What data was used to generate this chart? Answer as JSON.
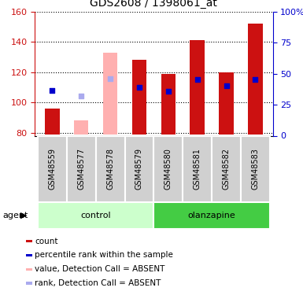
{
  "title": "GDS2608 / 1398061_at",
  "samples": [
    "GSM48559",
    "GSM48577",
    "GSM48578",
    "GSM48579",
    "GSM48580",
    "GSM48581",
    "GSM48582",
    "GSM48583"
  ],
  "groups": {
    "control": [
      0,
      1,
      2,
      3
    ],
    "olanzapine": [
      4,
      5,
      6,
      7
    ]
  },
  "ylim_left": [
    78,
    160
  ],
  "ylim_right": [
    0,
    100
  ],
  "yticks_left": [
    80,
    100,
    120,
    140,
    160
  ],
  "yticks_right": [
    0,
    25,
    50,
    75,
    100
  ],
  "ytick_labels_right": [
    "0",
    "25",
    "50",
    "75",
    "100%"
  ],
  "red_bars": {
    "values": [
      96,
      null,
      null,
      128,
      119,
      141,
      120,
      152
    ],
    "bottom": [
      79,
      null,
      null,
      79,
      79,
      79,
      79,
      79
    ]
  },
  "pink_bars": {
    "values": [
      null,
      88,
      133,
      null,
      null,
      null,
      null,
      null
    ],
    "bottom": [
      null,
      79,
      79,
      null,
      null,
      null,
      null,
      null
    ]
  },
  "blue_squares": {
    "x": [
      0,
      3,
      4,
      5,
      6,
      7
    ],
    "y": [
      108,
      110,
      107.5,
      115,
      111,
      115
    ]
  },
  "light_blue_squares": {
    "x": [
      1,
      2
    ],
    "y": [
      104.5,
      115.5
    ]
  },
  "colors": {
    "red_bar": "#CC1111",
    "pink_bar": "#FFB0B0",
    "blue_sq": "#0000CC",
    "light_blue_sq": "#AAAAEE",
    "control_bg": "#CCFFCC",
    "olanzapine_bg": "#44CC44",
    "sample_cell_bg": "#D0D0D0",
    "axis_left": "#CC1111",
    "axis_right": "#0000CC"
  },
  "legend": [
    {
      "label": "count",
      "color": "#CC1111"
    },
    {
      "label": "percentile rank within the sample",
      "color": "#0000CC"
    },
    {
      "label": "value, Detection Call = ABSENT",
      "color": "#FFB0B0"
    },
    {
      "label": "rank, Detection Call = ABSENT",
      "color": "#AAAAEE"
    }
  ],
  "agent_label": "agent",
  "group_labels": [
    "control",
    "olanzapine"
  ]
}
